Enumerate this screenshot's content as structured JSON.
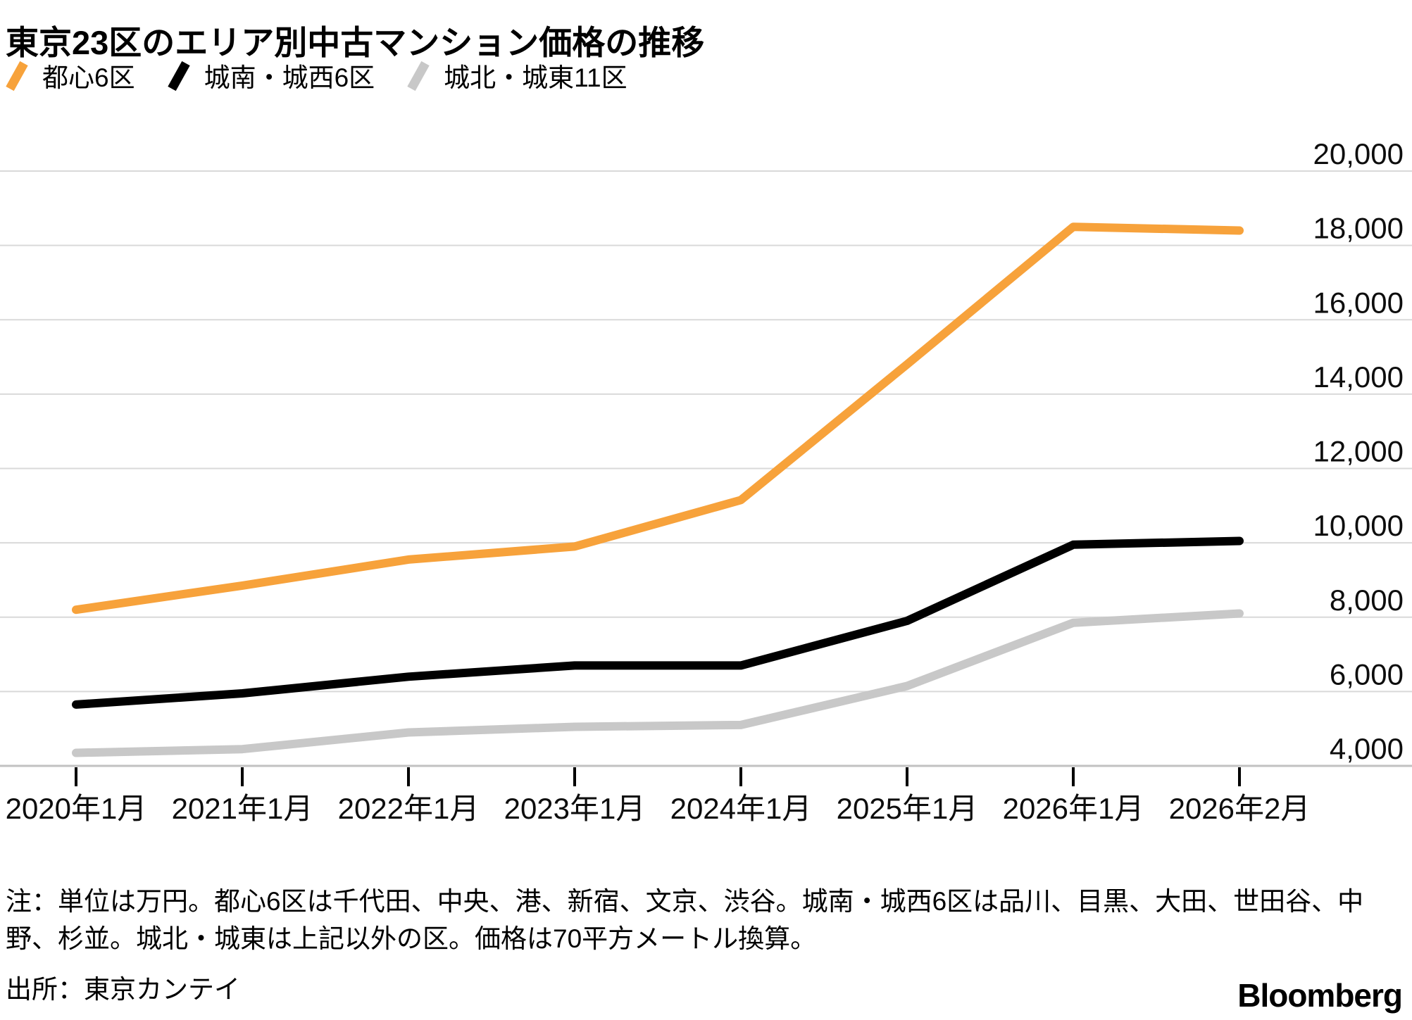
{
  "title": "東京23区のエリア別中古マンション価格の推移",
  "legend": {
    "items": [
      {
        "label": "都心6区",
        "color": "#f7a23b"
      },
      {
        "label": "城南・城西6区",
        "color": "#000000"
      },
      {
        "label": "城北・城東11区",
        "color": "#c8c8c8"
      }
    ]
  },
  "chart_data": {
    "type": "line",
    "title": "東京23区のエリア別中古マンション価格の推移",
    "xlabel": "",
    "ylabel": "",
    "unit": "万円",
    "grid": true,
    "legend_position": "top-left",
    "categories": [
      "2020年1月",
      "2021年1月",
      "2022年1月",
      "2023年1月",
      "2024年1月",
      "2025年1月",
      "2026年1月",
      "2026年2月"
    ],
    "series": [
      {
        "name": "都心6区",
        "color": "#f7a23b",
        "values": [
          8200,
          8850,
          9550,
          9900,
          11150,
          14800,
          18500,
          18400
        ]
      },
      {
        "name": "城南・城西6区",
        "color": "#000000",
        "values": [
          5650,
          5950,
          6400,
          6700,
          6700,
          7900,
          9950,
          10050
        ]
      },
      {
        "name": "城北・城東11区",
        "color": "#c8c8c8",
        "values": [
          4350,
          4450,
          4900,
          5050,
          5100,
          6150,
          7850,
          8100
        ]
      }
    ],
    "y_ticks": [
      20000,
      18000,
      16000,
      14000,
      12000,
      10000,
      8000,
      6000,
      4000
    ],
    "y_tick_labels": [
      "20,000",
      "18,000",
      "16,000",
      "14,000",
      "12,000",
      "10,000",
      "8,000",
      "6,000",
      "4,000"
    ],
    "ylim": [
      3300,
      20400
    ]
  },
  "notes": "注：単位は万円。都心6区は千代田、中央、港、新宿、文京、渋谷。城南・城西6区は品川、目黒、大田、世田谷、中野、杉並。城北・城東は上記以外の区。価格は70平方メートル換算。",
  "source": "出所：東京カンテイ",
  "brand": "Bloomberg"
}
